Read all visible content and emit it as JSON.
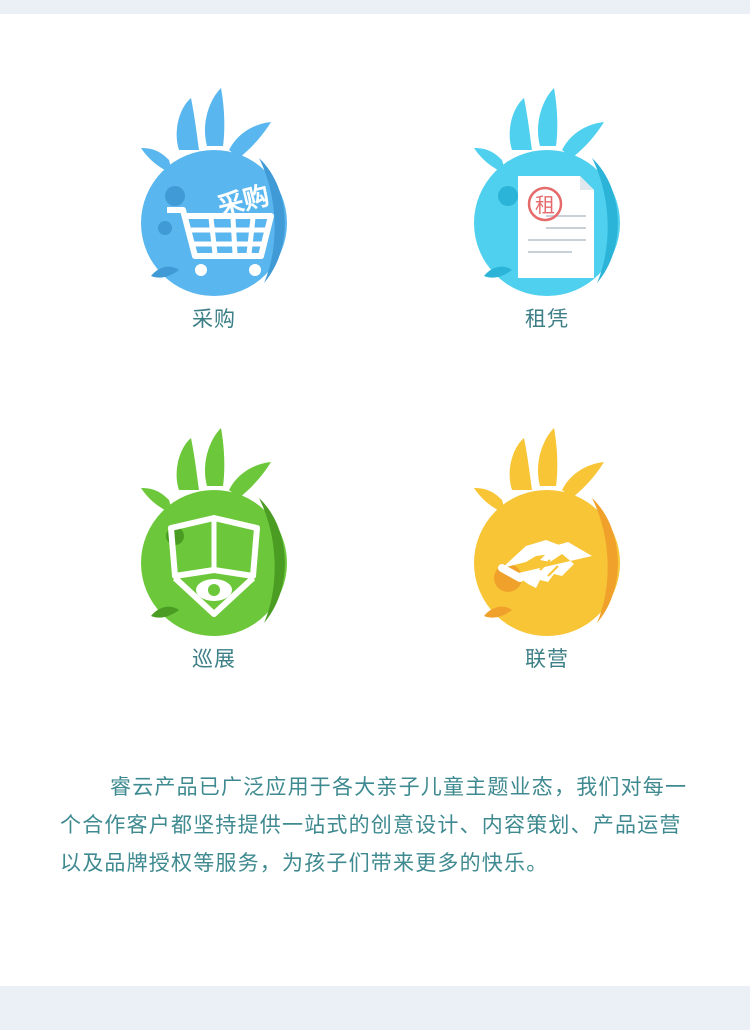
{
  "services": [
    {
      "label": "采购",
      "icon": "shopping-cart-icon",
      "stamp": "采购",
      "color": "#5ab6ee"
    },
    {
      "label": "租凭",
      "icon": "rental-document-icon",
      "stamp": "租",
      "color": "#4fd0ef"
    },
    {
      "label": "巡展",
      "icon": "tour-exhibition-icon",
      "color": "#6cc83a"
    },
    {
      "label": "联营",
      "icon": "handshake-icon",
      "color": "#f7c535"
    }
  ],
  "description": "睿云产品已广泛应用于各大亲子儿童主题业态，我们对每一个合作客户都坚持提供一站式的创意设计、内容策划、产品运营以及品牌授权等服务，为孩子们带来更多的快乐。"
}
